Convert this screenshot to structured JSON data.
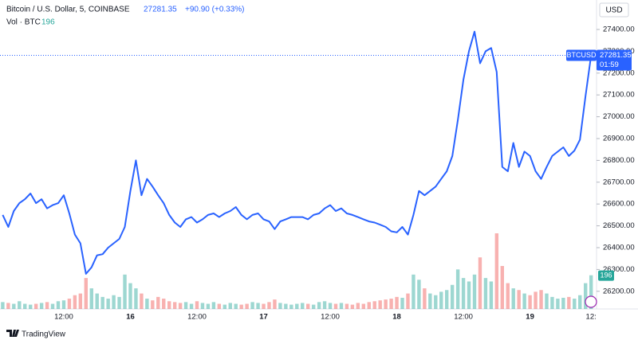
{
  "chart_data": {
    "type": "line",
    "title": "Bitcoin / U.S. Dollar, 5, COINBASE",
    "change": "+90.90 (+0.33%)",
    "volume_title": "Vol · BTC",
    "currency": "USD",
    "symbol": "BTCUSD",
    "countdown": "01:59",
    "brand": "TradingView",
    "color": "#2962ff",
    "up_color": "#26a69a",
    "down_color": "#ef5350",
    "grid": false,
    "categories": [
      null,
      null,
      null,
      null,
      null,
      null,
      null,
      null,
      null,
      null,
      null,
      "12:00",
      null,
      null,
      null,
      null,
      null,
      null,
      null,
      null,
      null,
      null,
      null,
      "16",
      null,
      null,
      null,
      null,
      null,
      null,
      null,
      null,
      null,
      null,
      null,
      "12:00",
      null,
      null,
      null,
      null,
      null,
      null,
      null,
      null,
      null,
      null,
      null,
      "17",
      null,
      null,
      null,
      null,
      null,
      null,
      null,
      null,
      null,
      null,
      null,
      "12:00",
      null,
      null,
      null,
      null,
      null,
      null,
      null,
      null,
      null,
      null,
      null,
      "18",
      null,
      null,
      null,
      null,
      null,
      null,
      null,
      null,
      null,
      null,
      null,
      "12:00",
      null,
      null,
      null,
      null,
      null,
      null,
      null,
      null,
      null,
      null,
      null,
      "19",
      null,
      null,
      null,
      null,
      null,
      null,
      null,
      null,
      null,
      null,
      "12:"
    ],
    "values": [
      26550,
      26495,
      26568,
      26604,
      26622,
      26648,
      26604,
      26622,
      26580,
      26595,
      26604,
      26640,
      26557,
      26460,
      26420,
      26280,
      26310,
      26365,
      26370,
      26400,
      26420,
      26440,
      26495,
      26660,
      26800,
      26640,
      26715,
      26680,
      26640,
      26604,
      26550,
      26515,
      26495,
      26530,
      26540,
      26515,
      26530,
      26550,
      26557,
      26540,
      26557,
      26568,
      26586,
      26550,
      26530,
      26550,
      26557,
      26530,
      26520,
      26485,
      26520,
      26530,
      26540,
      26540,
      26540,
      26530,
      26550,
      26557,
      26580,
      26595,
      26568,
      26580,
      26557,
      26550,
      26540,
      26530,
      26520,
      26515,
      26505,
      26495,
      26475,
      26470,
      26495,
      26460,
      26550,
      26660,
      26640,
      26660,
      26680,
      26715,
      26750,
      26820,
      26985,
      27170,
      27300,
      27390,
      27245,
      27300,
      27315,
      27205,
      26770,
      26750,
      26880,
      26770,
      26840,
      26820,
      26750,
      26715,
      26770,
      26820,
      26840,
      26860,
      26820,
      26845,
      26895,
      27095,
      27281.35
    ],
    "volume": [
      40,
      35,
      30,
      45,
      30,
      25,
      30,
      35,
      40,
      30,
      45,
      50,
      60,
      80,
      90,
      180,
      120,
      90,
      70,
      60,
      80,
      70,
      200,
      150,
      120,
      90,
      60,
      50,
      70,
      60,
      45,
      40,
      35,
      40,
      30,
      45,
      35,
      30,
      40,
      30,
      25,
      35,
      30,
      25,
      30,
      40,
      35,
      30,
      40,
      55,
      35,
      30,
      25,
      30,
      35,
      30,
      25,
      40,
      45,
      35,
      30,
      35,
      30,
      25,
      35,
      30,
      40,
      45,
      50,
      55,
      60,
      70,
      65,
      90,
      200,
      170,
      120,
      90,
      80,
      100,
      110,
      140,
      230,
      180,
      160,
      200,
      300,
      180,
      160,
      440,
      250,
      150,
      120,
      110,
      90,
      80,
      100,
      110,
      90,
      70,
      60,
      65,
      70,
      60,
      80,
      150,
      196
    ],
    "ylim": [
      26119,
      27535
    ],
    "yticks": [
      {
        "value": 26200,
        "label": "26200.00"
      },
      {
        "value": 26300,
        "label": "26300.00"
      },
      {
        "value": 26400,
        "label": "26400.00"
      },
      {
        "value": 26500,
        "label": "26500.00"
      },
      {
        "value": 26600,
        "label": "26600.00"
      },
      {
        "value": 26700,
        "label": "26700.00"
      },
      {
        "value": 26800,
        "label": "26800.00"
      },
      {
        "value": 26900,
        "label": "26900.00"
      },
      {
        "value": 27000,
        "label": "27000.00"
      },
      {
        "value": 27100,
        "label": "27100.00"
      },
      {
        "value": 27200,
        "label": "27200.00"
      },
      {
        "value": 27300,
        "label": "27300.00"
      },
      {
        "value": 27400,
        "label": "27400.00"
      }
    ]
  }
}
